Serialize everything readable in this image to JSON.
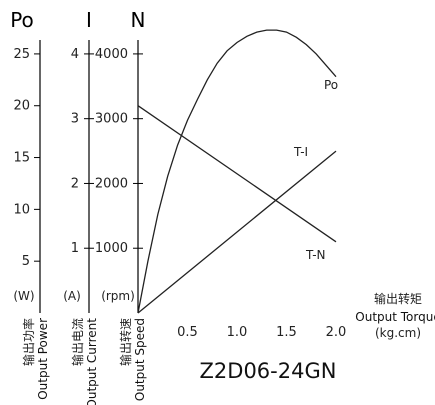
{
  "chart_data": {
    "type": "line",
    "title": "Z2D06-24GN",
    "x": {
      "label_cn": "输出转矩",
      "label_en": "Output Torque",
      "unit": "(kg.cm)",
      "lim": [
        0,
        2.0
      ],
      "ticks": [
        "0.5",
        "1.0",
        "1.5",
        "2.0"
      ]
    },
    "axes": [
      {
        "key": "power",
        "header": "Po",
        "unit": "(W)",
        "label_cn": "输出功率",
        "label_en": "Output Power",
        "lim": [
          0,
          27.5
        ],
        "ticks": [
          "5",
          "10",
          "15",
          "20",
          "25"
        ]
      },
      {
        "key": "current",
        "header": "I",
        "unit": "(A)",
        "label_cn": "输出电流",
        "label_en": "Output Current",
        "lim": [
          0,
          4.4
        ],
        "ticks": [
          "1",
          "2",
          "3",
          "4"
        ]
      },
      {
        "key": "speed",
        "header": "N",
        "unit": "(rpm)",
        "label_cn": "输出转速",
        "label_en": "Output Speed",
        "lim": [
          0,
          4400
        ],
        "ticks": [
          "1000",
          "2000",
          "3000",
          "4000"
        ]
      }
    ],
    "series": [
      {
        "name": "Po",
        "axis": "power",
        "points": [
          [
            0.0,
            0.0
          ],
          [
            0.1,
            5.0
          ],
          [
            0.2,
            9.5
          ],
          [
            0.3,
            13.2
          ],
          [
            0.4,
            16.2
          ],
          [
            0.5,
            18.6
          ],
          [
            0.6,
            20.6
          ],
          [
            0.7,
            22.5
          ],
          [
            0.8,
            24.1
          ],
          [
            0.9,
            25.3
          ],
          [
            1.0,
            26.1
          ],
          [
            1.1,
            26.7
          ],
          [
            1.2,
            27.1
          ],
          [
            1.3,
            27.3
          ],
          [
            1.4,
            27.3
          ],
          [
            1.5,
            27.1
          ],
          [
            1.6,
            26.6
          ],
          [
            1.7,
            25.9
          ],
          [
            1.8,
            25.0
          ],
          [
            1.9,
            23.9
          ],
          [
            2.0,
            22.8
          ]
        ]
      },
      {
        "name": "T-I",
        "axis": "current",
        "points": [
          [
            0.0,
            0.0
          ],
          [
            2.0,
            2.5
          ]
        ]
      },
      {
        "name": "T-N",
        "axis": "speed",
        "points": [
          [
            0.0,
            3200
          ],
          [
            2.0,
            1100
          ]
        ]
      }
    ],
    "grid": false,
    "legend": "none"
  }
}
